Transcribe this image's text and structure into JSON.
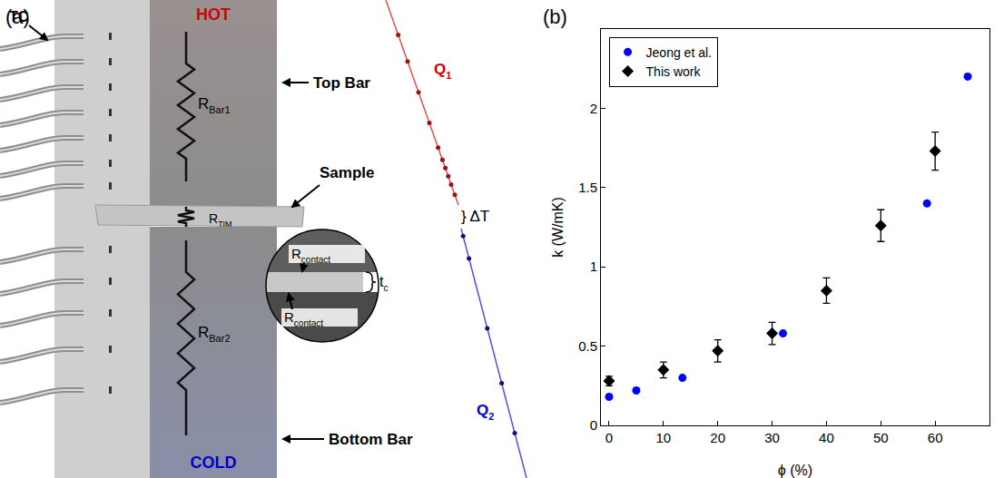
{
  "chart_data": {
    "type": "scatter",
    "annotations": [
      "(b)"
    ],
    "x_label": "ϕ (%)",
    "y_label": "k (W/mK)",
    "xlim": [
      -1.5,
      70
    ],
    "xticks": [
      0,
      10,
      20,
      30,
      40,
      50,
      60
    ],
    "ylim": [
      0,
      2.5
    ],
    "yticks": [
      0,
      0.5,
      1,
      1.5,
      2
    ],
    "grid": false,
    "legend": "upper left",
    "series": [
      {
        "name": "Jeong et al.",
        "color": "#0000ff",
        "marker": "circle",
        "x": [
          0,
          5,
          13.5,
          32,
          58.5,
          66
        ],
        "values": [
          0.18,
          0.22,
          0.3,
          0.58,
          1.4,
          2.2
        ]
      },
      {
        "name": "This work",
        "color": "#000000",
        "marker": "diamond",
        "x": [
          0,
          10,
          20,
          30,
          40,
          50,
          60
        ],
        "values": [
          0.28,
          0.35,
          0.47,
          0.58,
          0.85,
          1.26,
          1.73
        ],
        "error": [
          0.03,
          0.05,
          0.07,
          0.07,
          0.08,
          0.1,
          0.12
        ]
      }
    ]
  },
  "diagram": {
    "label": "(a)",
    "tc": "TC",
    "hot": "HOT",
    "cold": "COLD",
    "top_bar": "Top Bar",
    "sample": "Sample",
    "bottom_bar": "Bottom Bar",
    "r_bar1": {
      "base": "R",
      "sub": "Bar1"
    },
    "r_tim": {
      "base": "R",
      "sub": "TIM"
    },
    "r_bar2": {
      "base": "R",
      "sub": "Bar2"
    },
    "r_contact": {
      "base": "R",
      "sub": "contact"
    },
    "t_c": {
      "base": "t",
      "sub": "c"
    },
    "q1": {
      "base": "Q",
      "sub": "1"
    },
    "q2": {
      "base": "Q",
      "sub": "2"
    },
    "delta_t": "} ΔT"
  }
}
